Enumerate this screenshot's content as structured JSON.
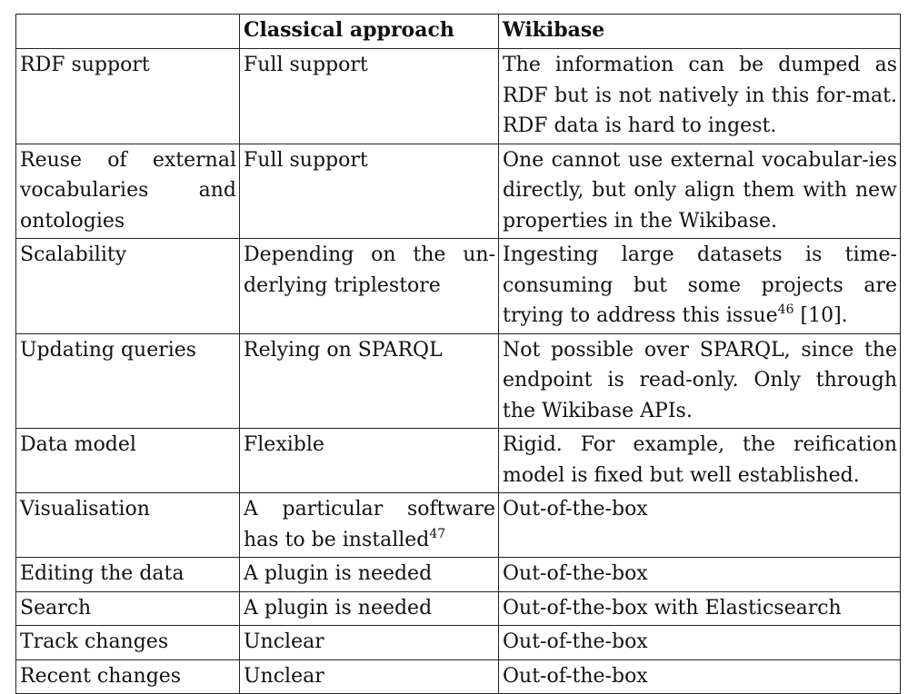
{
  "table": {
    "headers": [
      "",
      "Classical approach",
      "Wikibase"
    ],
    "rows": [
      {
        "feature": "RDF support",
        "classical": "Full support",
        "wikibase": "The information can be dumped as RDF but is not natively in this for-mat. RDF data is hard to ingest."
      },
      {
        "feature": "Reuse of external vocabularies and ontologies",
        "classical": "Full support",
        "wikibase": "One cannot use external vocabular-ies directly, but only align them with new properties in the Wikibase."
      },
      {
        "feature": "Scalability",
        "classical": "Depending on the un-derlying triplestore",
        "wikibase": "Ingesting large datasets is time-consuming but some projects are trying to address this issue",
        "wikibase_footnote": "46",
        "wikibase_suffix": " [10]."
      },
      {
        "feature": "Updating queries",
        "classical": "Relying on SPARQL",
        "wikibase": "Not possible over SPARQL, since the endpoint is read-only. Only through the Wikibase APIs."
      },
      {
        "feature": "Data model",
        "classical": "Flexible",
        "wikibase": "Rigid. For example, the reification model is fixed but well established."
      },
      {
        "feature": "Visualisation",
        "classical": "A particular software has to be installed",
        "classical_footnote": "47",
        "wikibase": "Out-of-the-box"
      },
      {
        "feature": "Editing the data",
        "classical": "A plugin is needed",
        "wikibase": "Out-of-the-box"
      },
      {
        "feature": "Search",
        "classical": "A plugin is needed",
        "wikibase": "Out-of-the-box with Elasticsearch"
      },
      {
        "feature": "Track changes",
        "classical": "Unclear",
        "wikibase": "Out-of-the-box"
      },
      {
        "feature": "Recent changes",
        "classical": "Unclear",
        "wikibase": "Out-of-the-box"
      }
    ]
  }
}
